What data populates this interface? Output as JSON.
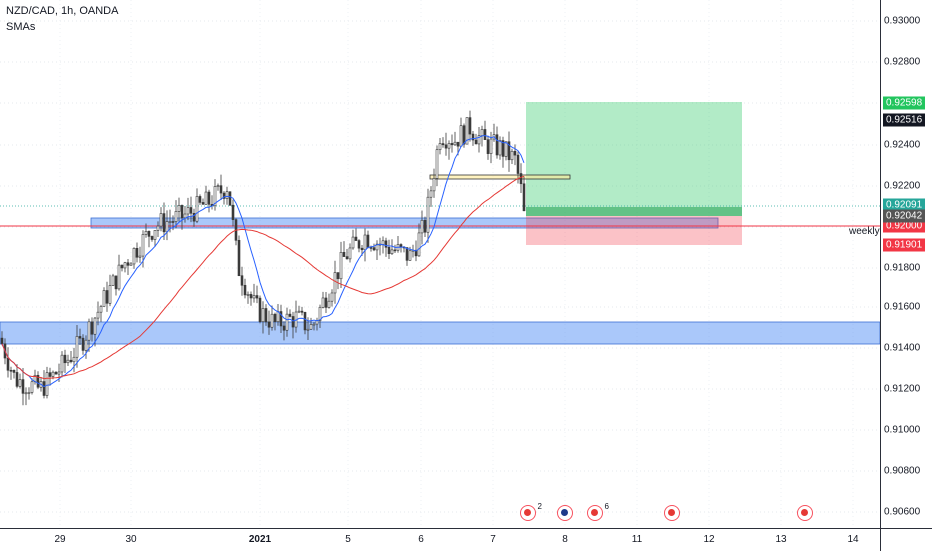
{
  "chart": {
    "title": "NZD/CAD, 1h, OANDA",
    "indicator": "SMAs",
    "weekly_label": "weekly"
  },
  "price_axis": {
    "labels": [
      "0.93000",
      "0.92800",
      "0.92400",
      "0.92200",
      "0.91800",
      "0.91600",
      "0.91400",
      "0.91200",
      "0.91000",
      "0.90800",
      "0.90600"
    ],
    "tags": {
      "take_profit": {
        "text": "0.92598",
        "color": "#22c55e"
      },
      "last_dark": {
        "text": "0.92516",
        "color": "#131722"
      },
      "current_green": {
        "text": "0.92091",
        "color": "#26a69a"
      },
      "current_gray": {
        "text": "0.92042",
        "color": "#555555"
      },
      "weekly_red": {
        "text": "0.92000",
        "color": "#f23645"
      },
      "stop_loss": {
        "text": "0.91901",
        "color": "#f23645"
      }
    }
  },
  "time_axis": {
    "labels": [
      "29",
      "30",
      "2021",
      "5",
      "6",
      "7",
      "8",
      "11",
      "12",
      "13",
      "14"
    ]
  },
  "events": [
    {
      "type": "ca",
      "count": "2"
    },
    {
      "type": "nz",
      "count": ""
    },
    {
      "type": "ca",
      "count": "6"
    },
    {
      "type": "ca",
      "count": ""
    },
    {
      "type": "ca",
      "count": ""
    }
  ]
}
